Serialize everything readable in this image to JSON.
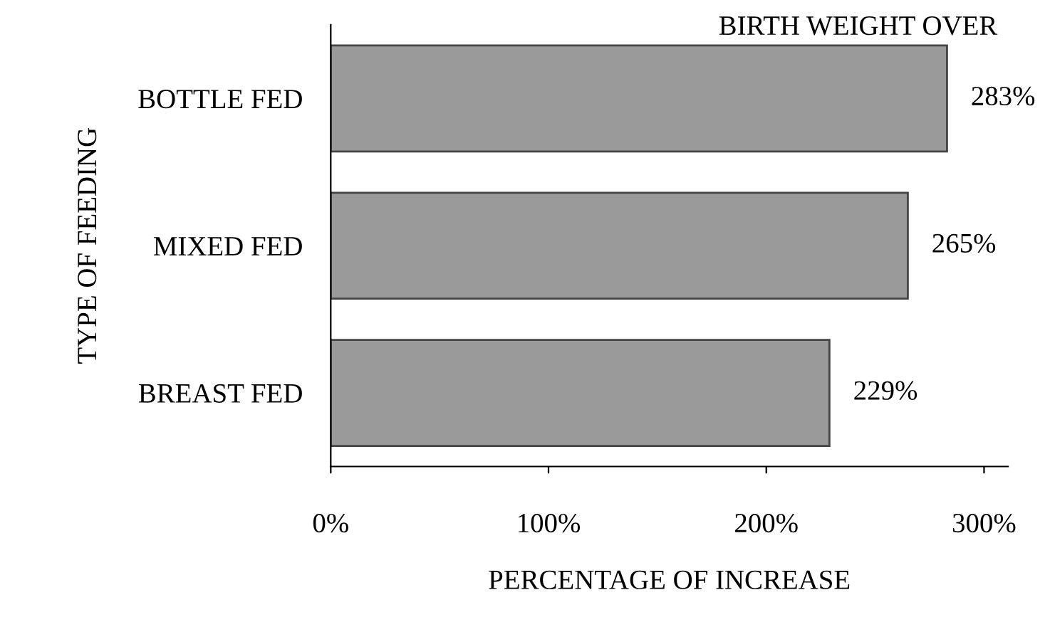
{
  "chart_data": {
    "type": "bar",
    "orientation": "horizontal",
    "title": "BIRTH WEIGHT OVER",
    "xlabel": "PERCENTAGE OF INCREASE",
    "ylabel": "TYPE OF FEEDING",
    "categories": [
      "BOTTLE FED",
      "MIXED FED",
      "BREAST FED"
    ],
    "values": [
      283,
      265,
      229
    ],
    "value_labels": [
      "283%",
      "265%",
      "229%"
    ],
    "color": "#9a9a9a",
    "xlim": [
      0,
      311
    ],
    "xticks": [
      {
        "value": 0,
        "label": "0%"
      },
      {
        "value": 100,
        "label": "100%"
      },
      {
        "value": 200,
        "label": "200%"
      },
      {
        "value": 300,
        "label": "300%"
      }
    ],
    "grid": false,
    "legend": false
  }
}
